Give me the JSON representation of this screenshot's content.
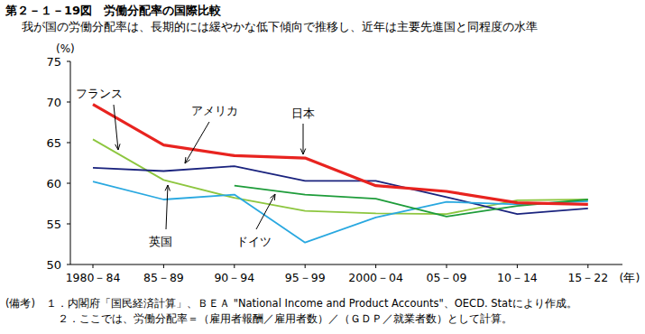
{
  "chart_data": {
    "type": "line",
    "title": "第２－１－19図　労働分配率の国際比較",
    "subtitle": "我が国の労働分配率は、長期的には緩やかな低下傾向で推移し、近年は主要先進国と同程度の水準",
    "y_unit": "(%)",
    "x_unit": "(年)",
    "notes": [
      "(備考)　１．内閣府「国民経済計算」、ＢＥＡ \"National Income and Product Accounts\"、OECD. Statにより作成。",
      "２．ここでは、労働分配率＝（雇用者報酬／雇用者数）／（ＧＤＰ／就業者数）として計算。"
    ],
    "categories": [
      "1980－84",
      "85－89",
      "90－94",
      "95－99",
      "2000－04",
      "05－09",
      "10－14",
      "15－22"
    ],
    "ylim": [
      50,
      75
    ],
    "yticks": [
      50,
      55,
      60,
      65,
      70,
      75
    ],
    "grid": false,
    "series": [
      {
        "name": "フランス",
        "color": "#8dc63f",
        "values": [
          65.4,
          60.4,
          58.2,
          56.6,
          56.3,
          56.2,
          57.9,
          58.0
        ]
      },
      {
        "name": "アメリカ",
        "color": "#1a237e",
        "values": [
          61.9,
          61.5,
          62.1,
          60.3,
          60.3,
          58.3,
          56.2,
          56.9
        ]
      },
      {
        "name": "日本",
        "color": "#e8231f",
        "values": [
          69.7,
          64.7,
          63.4,
          63.1,
          59.7,
          59.0,
          57.6,
          57.4
        ]
      },
      {
        "name": "英国",
        "color": "#29a8e0",
        "values": [
          60.2,
          58.0,
          58.6,
          52.7,
          55.8,
          57.7,
          57.4,
          57.8
        ]
      },
      {
        "name": "ドイツ",
        "color": "#1e9c3a",
        "values": [
          null,
          null,
          59.7,
          58.6,
          58.1,
          55.9,
          57.2,
          58.0
        ]
      }
    ]
  }
}
